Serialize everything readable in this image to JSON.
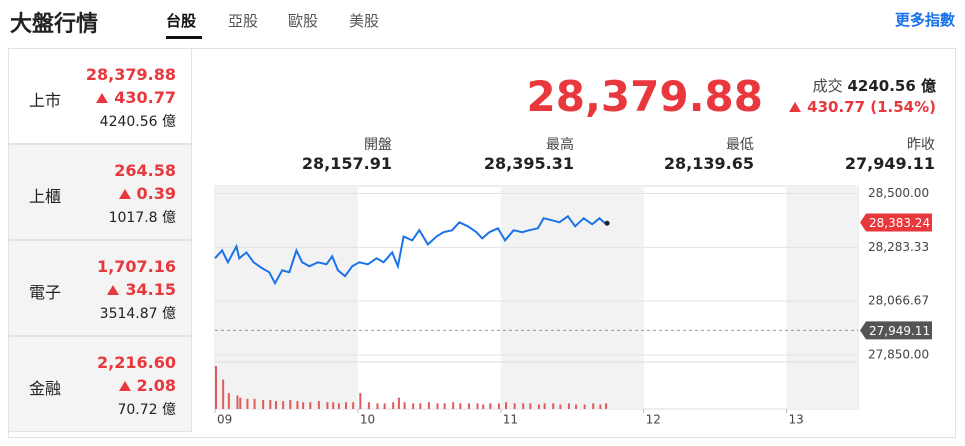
{
  "header": {
    "title": "大盤行情",
    "tabs": [
      "台股",
      "亞股",
      "歐股",
      "美股"
    ],
    "more": "更多指數"
  },
  "markets": [
    {
      "name": "上市",
      "price": "28,379.88",
      "change": "430.77",
      "volume": "4240.56 億"
    },
    {
      "name": "上櫃",
      "price": "264.58",
      "change": "0.39",
      "volume": "1017.8 億"
    },
    {
      "name": "電子",
      "price": "1,707.16",
      "change": "34.15",
      "volume": "3514.87 億"
    },
    {
      "name": "金融",
      "price": "2,216.60",
      "change": "2.08",
      "volume": "70.72 億"
    }
  ],
  "quote": {
    "price": "28,379.88",
    "volume_label": "成交",
    "volume": "4240.56 億",
    "change": "430.77 (1.54%)"
  },
  "stats": [
    {
      "label": "開盤",
      "value": "28,157.91"
    },
    {
      "label": "最高",
      "value": "28,395.31"
    },
    {
      "label": "最低",
      "value": "28,139.65"
    },
    {
      "label": "昨收",
      "value": "27,949.11"
    }
  ],
  "chart_data": {
    "type": "line",
    "color": "#1a73e8",
    "volume_color": "#e05a5a",
    "x": [
      9.0,
      9.05,
      9.09,
      9.15,
      9.17,
      9.22,
      9.27,
      9.33,
      9.38,
      9.42,
      9.47,
      9.52,
      9.57,
      9.61,
      9.66,
      9.72,
      9.78,
      9.82,
      9.86,
      9.91,
      9.96,
      10.01,
      10.07,
      10.13,
      10.18,
      10.24,
      10.28,
      10.32,
      10.38,
      10.43,
      10.49,
      10.55,
      10.6,
      10.66,
      10.71,
      10.77,
      10.83,
      10.87,
      10.92,
      10.98,
      11.03,
      11.09,
      11.15,
      11.2,
      11.26,
      11.3,
      11.36,
      11.41,
      11.47,
      11.52,
      11.58,
      11.64,
      11.69,
      11.73
    ],
    "values": [
      28239,
      28271,
      28223,
      28287,
      28239,
      28263,
      28223,
      28199,
      28183,
      28139,
      28191,
      28183,
      28271,
      28223,
      28207,
      28223,
      28215,
      28247,
      28191,
      28167,
      28207,
      28223,
      28215,
      28239,
      28223,
      28263,
      28207,
      28327,
      28311,
      28352,
      28295,
      28327,
      28344,
      28352,
      28384,
      28368,
      28344,
      28319,
      28344,
      28360,
      28311,
      28352,
      28344,
      28352,
      28360,
      28400,
      28392,
      28384,
      28408,
      28368,
      28400,
      28376,
      28400,
      28380
    ],
    "volume": [
      38,
      26,
      14,
      12,
      10,
      9,
      9,
      8,
      8,
      7,
      7,
      8,
      7,
      6,
      6,
      7,
      6,
      6,
      5,
      6,
      6,
      14,
      6,
      5,
      5,
      6,
      10,
      6,
      5,
      5,
      6,
      5,
      5,
      6,
      5,
      5,
      5,
      4,
      5,
      5,
      6,
      5,
      5,
      5,
      4,
      5,
      5,
      4,
      5,
      4,
      4,
      5,
      4,
      5
    ],
    "xlim": [
      9,
      13.5
    ],
    "xticks": [
      {
        "value": 9,
        "label": "09"
      },
      10,
      11,
      12,
      13
    ],
    "ylim": [
      27830,
      28530
    ],
    "yticks": [
      {
        "value": 28500,
        "label": "28,500.00"
      },
      {
        "value": 28283.33,
        "label": "28,283.33"
      },
      {
        "value": 28066.67,
        "label": "28,066.67"
      },
      {
        "value": 27850,
        "label": "27,850.00"
      }
    ],
    "last_price": {
      "value": 28383.24,
      "label": "28,383.24"
    },
    "prev_close": {
      "value": 27949.11,
      "label": "27,949.11"
    }
  }
}
